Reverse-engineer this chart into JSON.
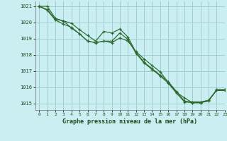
{
  "title": "Graphe pression niveau de la mer (hPa)",
  "bg_color": "#cbeef3",
  "grid_color": "#9ecece",
  "line_color": "#2d6a2d",
  "xlim": [
    -0.5,
    23
  ],
  "ylim": [
    1014.6,
    1021.3
  ],
  "yticks": [
    1015,
    1016,
    1017,
    1018,
    1019,
    1020,
    1021
  ],
  "xticks": [
    0,
    1,
    2,
    3,
    4,
    5,
    6,
    7,
    8,
    9,
    10,
    11,
    12,
    13,
    14,
    15,
    16,
    17,
    18,
    19,
    20,
    21,
    22,
    23
  ],
  "series": [
    [
      1021.0,
      1020.8,
      1020.2,
      1020.1,
      1019.95,
      1019.55,
      1019.2,
      1018.85,
      1019.45,
      1019.35,
      1019.6,
      1019.1,
      1018.15,
      1017.55,
      1017.15,
      1016.75,
      1016.35,
      1015.75,
      1015.15,
      1015.1,
      1015.1,
      1015.2,
      1015.85,
      1015.85
    ],
    [
      1021.0,
      1020.75,
      1020.15,
      1019.9,
      1019.7,
      1019.3,
      1018.85,
      1018.75,
      1018.85,
      1018.75,
      1019.05,
      1018.85,
      1018.2,
      1017.75,
      1017.35,
      1016.95,
      1016.3,
      1015.7,
      1015.35,
      1015.05,
      1015.05,
      1015.2,
      1015.8,
      1015.8
    ],
    [
      1021.0,
      1021.0,
      1020.25,
      1020.1,
      1019.65,
      1019.3,
      1018.85,
      1018.75,
      1018.85,
      1018.85,
      1019.35,
      1018.95,
      1018.1,
      1017.5,
      1017.1,
      1016.7,
      1016.25,
      1015.65,
      1015.1,
      1015.05,
      1015.05,
      1015.15,
      1015.85,
      1015.85
    ]
  ]
}
